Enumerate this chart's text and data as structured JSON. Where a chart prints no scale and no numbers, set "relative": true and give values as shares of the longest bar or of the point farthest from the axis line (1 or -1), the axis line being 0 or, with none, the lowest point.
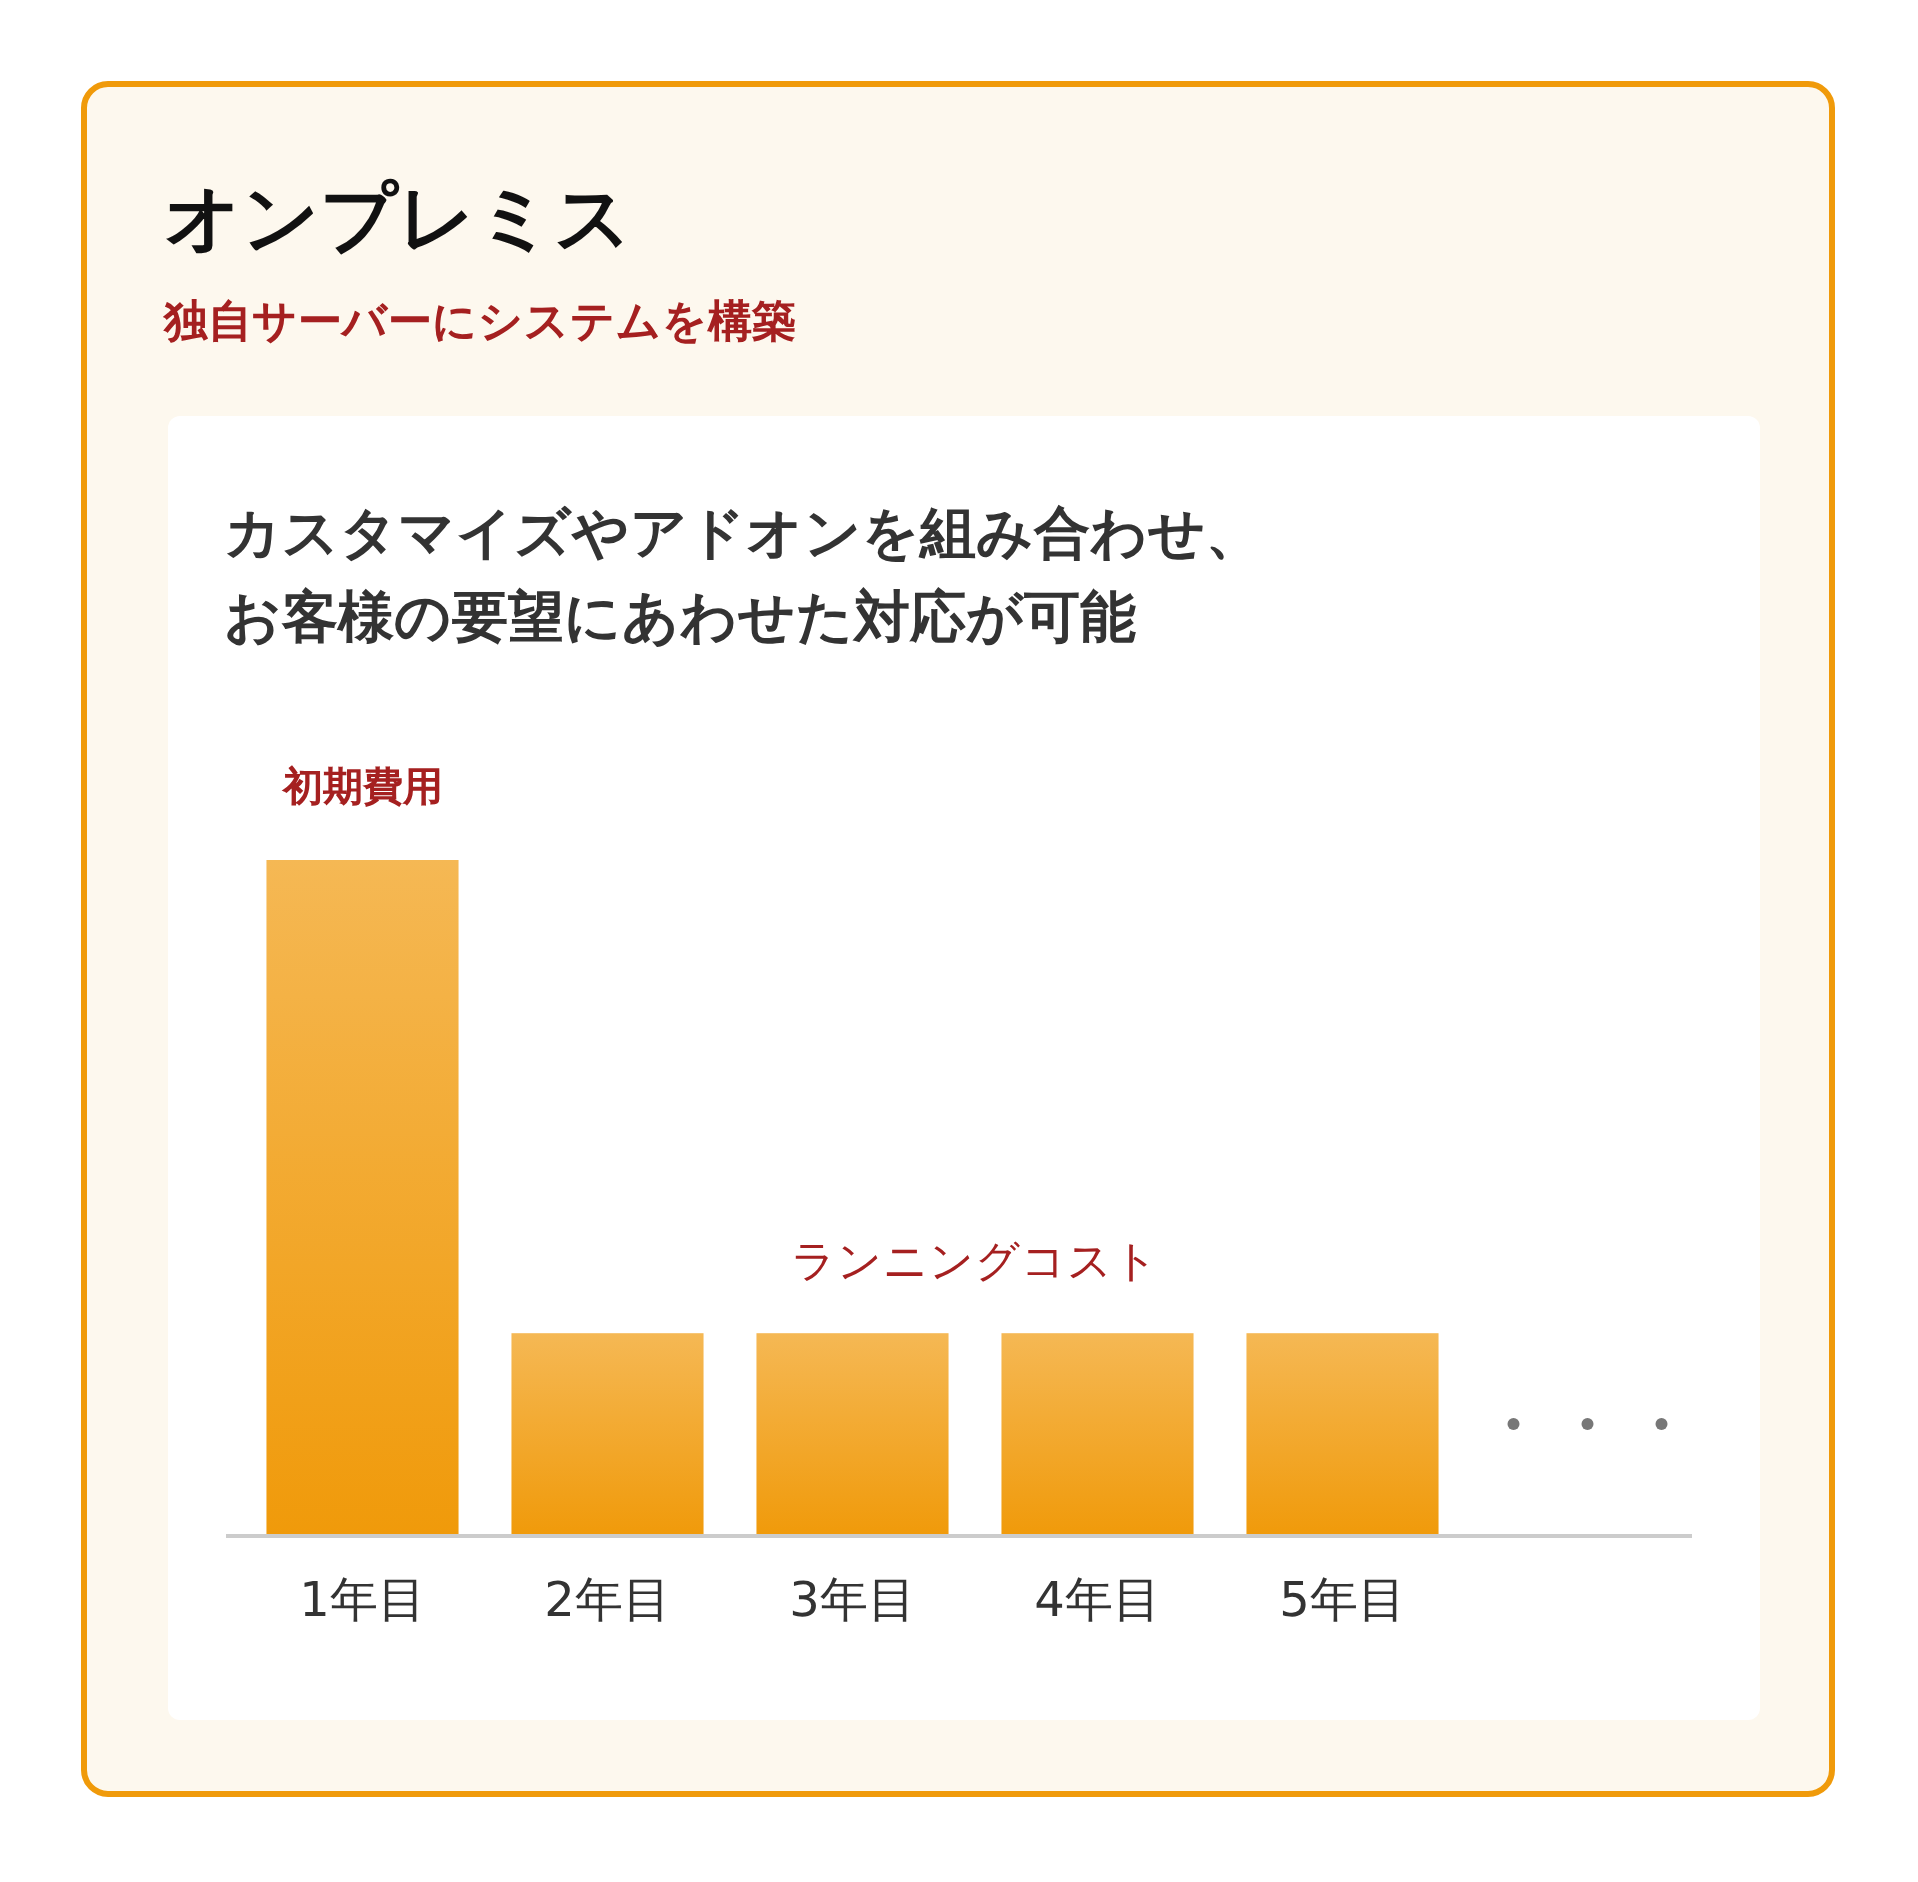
{
  "chart_data": {
    "type": "bar",
    "title": "オンプレミス",
    "subtitle": "独自サーバーにシステムを構築",
    "categories": [
      "1年目",
      "2年目",
      "3年目",
      "4年目",
      "5年目"
    ],
    "values": [
      1,
      0.3,
      0.3,
      0.3,
      0.3
    ],
    "color": "#f09a0a",
    "relative": true,
    "annotations": [
      "カスタマイズやアドオンを組み合わせ、",
      "お客様の要望にあわせた対応が可能",
      {
        "text": "初期費用",
        "x": "1年目",
        "y": 1
      },
      "ランニングコスト"
    ]
  }
}
